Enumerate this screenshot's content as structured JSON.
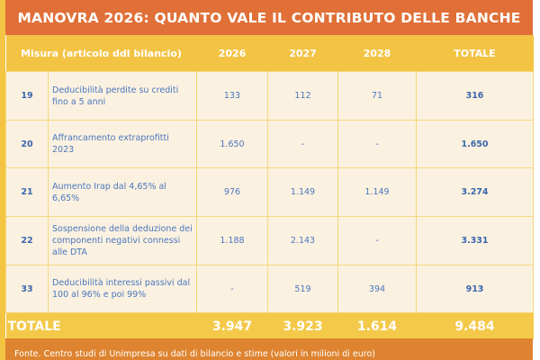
{
  "title": "MANOVRA 2026: QUANTO VALE IL CONTRIBUTO DELLE BANCHE",
  "header": {
    "measure": "Misura (articolo ddl bilancio)",
    "y2026": "2026",
    "y2027": "2027",
    "y2028": "2028",
    "total": "TOTALE"
  },
  "rows": [
    {
      "article": "19",
      "description": "Deducibilità perdite su crediti fino a 5 anni",
      "y2026": "133",
      "y2027": "112",
      "y2028": "71",
      "total": "316"
    },
    {
      "article": "20",
      "description": "Affrancamento extraprofitti 2023",
      "y2026": "1.650",
      "y2027": "-",
      "y2028": "-",
      "total": "1.650"
    },
    {
      "article": "21",
      "description": "Aumento Irap dal 4,65% al 6,65%",
      "y2026": "976",
      "y2027": "1.149",
      "y2028": "1.149",
      "total": "3.274"
    },
    {
      "article": "22",
      "description": "Sospensione della deduzione dei componenti negativi connessi alle DTA",
      "y2026": "1.188",
      "y2027": "2.143",
      "y2028": "-",
      "total": "3.331"
    },
    {
      "article": "33",
      "description": "Deducibilità interessi passivi dal 100 al 96% e poi 99%",
      "y2026": "-",
      "y2027": "519",
      "y2028": "394",
      "total": "913"
    }
  ],
  "totals": {
    "label": "TOTALE",
    "y2026": "3.947",
    "y2027": "3.923",
    "y2028": "1.614",
    "total": "9.484"
  },
  "source": "Fonte. Centro studi di Unimpresa su dati di bilancio e stime (valori in milioni di euro)"
}
